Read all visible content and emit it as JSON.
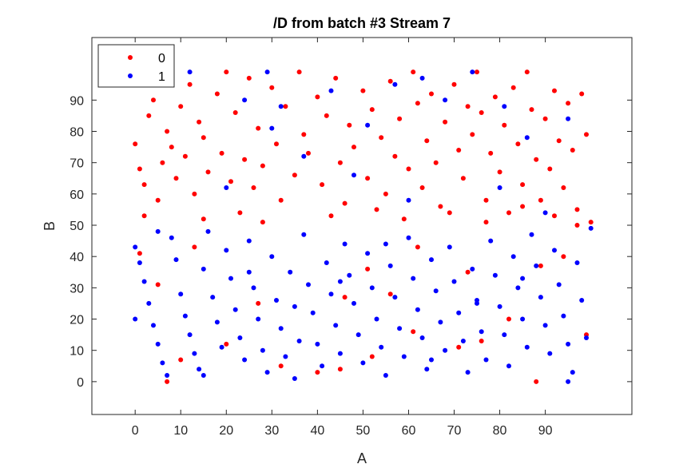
{
  "chart_data": {
    "type": "scatter",
    "title": "/D from batch #3 Stream 7",
    "xlabel": "A",
    "ylabel": "B",
    "xlim": [
      -9.5,
      109
    ],
    "ylim": [
      -10.5,
      110
    ],
    "xticks": [
      0,
      10,
      20,
      30,
      40,
      50,
      60,
      70,
      80,
      90
    ],
    "yticks": [
      0,
      10,
      20,
      30,
      40,
      50,
      60,
      70,
      80,
      90
    ],
    "grid": false,
    "legend_position": "top-left",
    "series": [
      {
        "name": "0",
        "color": "#ff0000",
        "points": [
          [
            0,
            76
          ],
          [
            1,
            68
          ],
          [
            2,
            63
          ],
          [
            3,
            85
          ],
          [
            4,
            90
          ],
          [
            6,
            70
          ],
          [
            7,
            80
          ],
          [
            8,
            75
          ],
          [
            9,
            65
          ],
          [
            10,
            88
          ],
          [
            11,
            72
          ],
          [
            12,
            95
          ],
          [
            13,
            60
          ],
          [
            14,
            83
          ],
          [
            15,
            78
          ],
          [
            16,
            67
          ],
          [
            18,
            92
          ],
          [
            19,
            73
          ],
          [
            20,
            99
          ],
          [
            21,
            64
          ],
          [
            22,
            86
          ],
          [
            24,
            71
          ],
          [
            25,
            97
          ],
          [
            26,
            62
          ],
          [
            27,
            81
          ],
          [
            28,
            69
          ],
          [
            30,
            94
          ],
          [
            31,
            76
          ],
          [
            32,
            58
          ],
          [
            33,
            88
          ],
          [
            35,
            66
          ],
          [
            36,
            99
          ],
          [
            37,
            79
          ],
          [
            38,
            73
          ],
          [
            40,
            91
          ],
          [
            41,
            63
          ],
          [
            42,
            85
          ],
          [
            44,
            97
          ],
          [
            45,
            70
          ],
          [
            46,
            57
          ],
          [
            47,
            82
          ],
          [
            48,
            75
          ],
          [
            50,
            93
          ],
          [
            51,
            65
          ],
          [
            52,
            87
          ],
          [
            54,
            78
          ],
          [
            55,
            60
          ],
          [
            56,
            96
          ],
          [
            57,
            72
          ],
          [
            58,
            84
          ],
          [
            60,
            68
          ],
          [
            61,
            99
          ],
          [
            62,
            89
          ],
          [
            63,
            62
          ],
          [
            64,
            77
          ],
          [
            65,
            92
          ],
          [
            66,
            70
          ],
          [
            67,
            56
          ],
          [
            68,
            83
          ],
          [
            70,
            95
          ],
          [
            71,
            74
          ],
          [
            72,
            65
          ],
          [
            73,
            88
          ],
          [
            74,
            79
          ],
          [
            75,
            99
          ],
          [
            76,
            86
          ],
          [
            77,
            58
          ],
          [
            78,
            73
          ],
          [
            79,
            91
          ],
          [
            80,
            67
          ],
          [
            81,
            82
          ],
          [
            82,
            54
          ],
          [
            83,
            94
          ],
          [
            84,
            76
          ],
          [
            85,
            63
          ],
          [
            86,
            99
          ],
          [
            87,
            87
          ],
          [
            88,
            71
          ],
          [
            89,
            58
          ],
          [
            90,
            84
          ],
          [
            91,
            68
          ],
          [
            92,
            93
          ],
          [
            93,
            77
          ],
          [
            94,
            62
          ],
          [
            95,
            89
          ],
          [
            96,
            74
          ],
          [
            97,
            55
          ],
          [
            98,
            92
          ],
          [
            99,
            79
          ],
          [
            100,
            51
          ],
          [
            2,
            53
          ],
          [
            5,
            58
          ],
          [
            15,
            52
          ],
          [
            23,
            54
          ],
          [
            28,
            51
          ],
          [
            43,
            53
          ],
          [
            53,
            55
          ],
          [
            59,
            52
          ],
          [
            69,
            54
          ],
          [
            77,
            51
          ],
          [
            85,
            56
          ],
          [
            92,
            53
          ],
          [
            97,
            50
          ],
          [
            1,
            41
          ],
          [
            5,
            31
          ],
          [
            13,
            43
          ],
          [
            27,
            25
          ],
          [
            46,
            27
          ],
          [
            51,
            36
          ],
          [
            56,
            28
          ],
          [
            62,
            43
          ],
          [
            73,
            35
          ],
          [
            82,
            20
          ],
          [
            89,
            37
          ],
          [
            94,
            40
          ],
          [
            7,
            0
          ],
          [
            10,
            7
          ],
          [
            20,
            12
          ],
          [
            32,
            5
          ],
          [
            40,
            3
          ],
          [
            45,
            4
          ],
          [
            52,
            8
          ],
          [
            61,
            16
          ],
          [
            71,
            11
          ],
          [
            76,
            13
          ],
          [
            88,
            0
          ],
          [
            99,
            15
          ]
        ]
      },
      {
        "name": "1",
        "color": "#0000ff",
        "points": [
          [
            0,
            43
          ],
          [
            1,
            38
          ],
          [
            2,
            32
          ],
          [
            3,
            25
          ],
          [
            4,
            18
          ],
          [
            5,
            12
          ],
          [
            6,
            6
          ],
          [
            7,
            2
          ],
          [
            8,
            46
          ],
          [
            9,
            39
          ],
          [
            10,
            28
          ],
          [
            11,
            21
          ],
          [
            12,
            15
          ],
          [
            13,
            9
          ],
          [
            14,
            4
          ],
          [
            15,
            36
          ],
          [
            16,
            48
          ],
          [
            17,
            27
          ],
          [
            18,
            19
          ],
          [
            19,
            11
          ],
          [
            20,
            42
          ],
          [
            21,
            33
          ],
          [
            22,
            23
          ],
          [
            23,
            14
          ],
          [
            24,
            7
          ],
          [
            25,
            45
          ],
          [
            26,
            30
          ],
          [
            27,
            20
          ],
          [
            28,
            10
          ],
          [
            29,
            3
          ],
          [
            30,
            40
          ],
          [
            31,
            26
          ],
          [
            32,
            17
          ],
          [
            33,
            8
          ],
          [
            34,
            35
          ],
          [
            35,
            24
          ],
          [
            36,
            13
          ],
          [
            37,
            47
          ],
          [
            38,
            31
          ],
          [
            39,
            22
          ],
          [
            40,
            12
          ],
          [
            41,
            5
          ],
          [
            42,
            38
          ],
          [
            43,
            28
          ],
          [
            44,
            18
          ],
          [
            45,
            9
          ],
          [
            46,
            44
          ],
          [
            47,
            34
          ],
          [
            48,
            25
          ],
          [
            49,
            15
          ],
          [
            50,
            6
          ],
          [
            51,
            41
          ],
          [
            52,
            30
          ],
          [
            53,
            20
          ],
          [
            54,
            11
          ],
          [
            55,
            2
          ],
          [
            56,
            37
          ],
          [
            57,
            27
          ],
          [
            58,
            17
          ],
          [
            59,
            8
          ],
          [
            60,
            46
          ],
          [
            61,
            33
          ],
          [
            62,
            23
          ],
          [
            63,
            14
          ],
          [
            64,
            4
          ],
          [
            65,
            39
          ],
          [
            66,
            29
          ],
          [
            67,
            19
          ],
          [
            68,
            10
          ],
          [
            69,
            43
          ],
          [
            70,
            32
          ],
          [
            71,
            22
          ],
          [
            72,
            13
          ],
          [
            73,
            3
          ],
          [
            74,
            36
          ],
          [
            75,
            26
          ],
          [
            76,
            16
          ],
          [
            77,
            7
          ],
          [
            78,
            45
          ],
          [
            79,
            34
          ],
          [
            80,
            24
          ],
          [
            81,
            15
          ],
          [
            82,
            5
          ],
          [
            83,
            40
          ],
          [
            84,
            30
          ],
          [
            85,
            20
          ],
          [
            86,
            11
          ],
          [
            87,
            47
          ],
          [
            88,
            37
          ],
          [
            89,
            27
          ],
          [
            90,
            18
          ],
          [
            91,
            9
          ],
          [
            92,
            42
          ],
          [
            93,
            31
          ],
          [
            94,
            21
          ],
          [
            95,
            12
          ],
          [
            96,
            3
          ],
          [
            97,
            38
          ],
          [
            98,
            26
          ],
          [
            99,
            14
          ],
          [
            100,
            49
          ],
          [
            0,
            20
          ],
          [
            5,
            48
          ],
          [
            15,
            2
          ],
          [
            25,
            35
          ],
          [
            35,
            1
          ],
          [
            45,
            32
          ],
          [
            55,
            44
          ],
          [
            65,
            7
          ],
          [
            75,
            25
          ],
          [
            85,
            33
          ],
          [
            95,
            0
          ],
          [
            30,
            81
          ],
          [
            32,
            88
          ],
          [
            37,
            72
          ],
          [
            43,
            93
          ],
          [
            51,
            82
          ],
          [
            74,
            99
          ],
          [
            81,
            88
          ],
          [
            86,
            78
          ],
          [
            95,
            84
          ],
          [
            20,
            62
          ],
          [
            48,
            66
          ],
          [
            60,
            58
          ],
          [
            80,
            62
          ],
          [
            90,
            54
          ],
          [
            12,
            99
          ],
          [
            24,
            90
          ],
          [
            29,
            99
          ],
          [
            57,
            95
          ],
          [
            63,
            97
          ],
          [
            68,
            90
          ]
        ]
      }
    ]
  }
}
